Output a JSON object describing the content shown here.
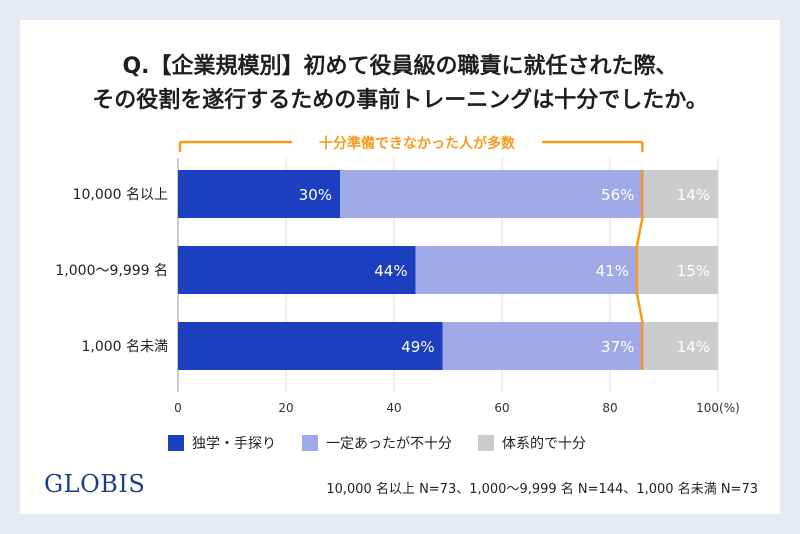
{
  "title": {
    "line1": "Q.【企業規模別】初めて役員級の職責に就任された際、",
    "line2": "その役割を遂行するための事前トレーニングは十分でしたか。"
  },
  "colors": {
    "self_study": "#1b3fbf",
    "partial": "#9fa9e6",
    "sufficient": "#cbccce",
    "highlight": "#f59b21",
    "brand": "#1c3d8f"
  },
  "chart_data": {
    "type": "bar",
    "orientation": "horizontal",
    "stacked": true,
    "categories": [
      "10,000 名以上",
      "1,000〜9,999 名",
      "1,000 名未満"
    ],
    "series": [
      {
        "name": "独学・手探り",
        "values": [
          30,
          44,
          49
        ]
      },
      {
        "name": "一定あったが不十分",
        "values": [
          56,
          41,
          37
        ]
      },
      {
        "name": "体系的で十分",
        "values": [
          14,
          15,
          14
        ]
      }
    ],
    "xlim": [
      0,
      100
    ],
    "xticks": [
      "0",
      "20",
      "40",
      "60",
      "80",
      "100(%)"
    ],
    "grid": true,
    "legend_position": "bottom",
    "annotation": "十分準備できなかった人が多数"
  },
  "legend": {
    "items": [
      {
        "label": "独学・手探り",
        "color": "#1b3fbf"
      },
      {
        "label": "一定あったが不十分",
        "color": "#9fa9e6"
      },
      {
        "label": "体系的で十分",
        "color": "#cbccce"
      }
    ]
  },
  "brand": "GLOBIS",
  "sample_note": "10,000 名以上 N=73、1,000〜9,999 名 N=144、1,000 名未満 N=73"
}
